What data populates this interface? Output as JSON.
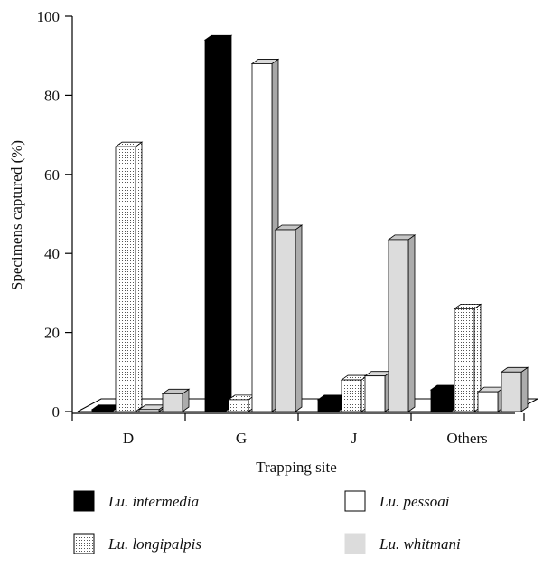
{
  "chart_data": {
    "type": "bar",
    "categories": [
      "D",
      "G",
      "J",
      "Others"
    ],
    "series": [
      {
        "name": "Lu. intermedia",
        "values": [
          0.5,
          94,
          3,
          5.5
        ],
        "color": "#000000",
        "pattern": "solid"
      },
      {
        "name": "Lu. longipalpis",
        "values": [
          67,
          3,
          8,
          26
        ],
        "color": "#ffffff",
        "pattern": "dotted"
      },
      {
        "name": "Lu. pessoai",
        "values": [
          0.5,
          88,
          9,
          5
        ],
        "color": "#ffffff",
        "pattern": "plain"
      },
      {
        "name": "Lu. whitmani",
        "values": [
          4.5,
          46,
          43.5,
          10
        ],
        "color": "#dcdcdc",
        "pattern": "solid"
      }
    ],
    "title": "",
    "xlabel": "Trapping site",
    "ylabel": "Specimens captured (%)",
    "ylim": [
      0,
      100
    ],
    "yticks": [
      "0",
      "20",
      "40",
      "60",
      "80",
      "100"
    ],
    "grid": false,
    "legend_position": "bottom",
    "style": "3d"
  }
}
